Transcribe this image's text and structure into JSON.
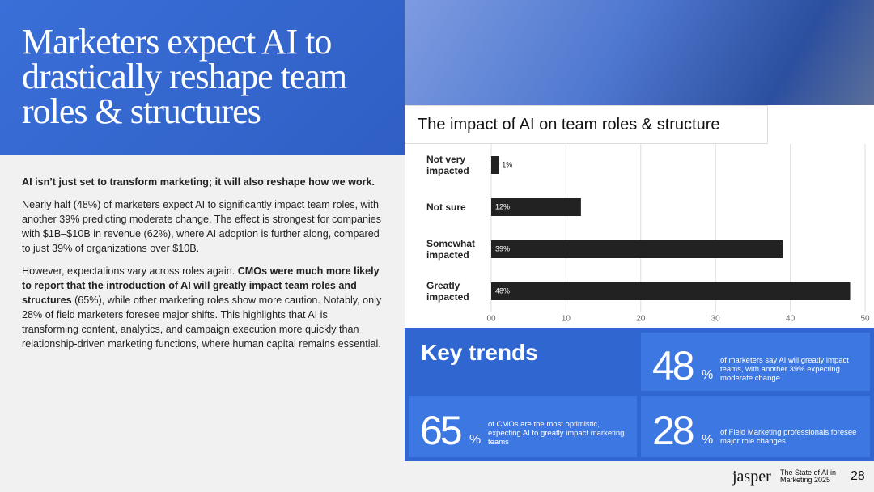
{
  "header": {
    "title": "Marketers expect AI to drastically reshape team roles & structures"
  },
  "body": {
    "lead": "AI isn’t just set to transform marketing; it will also reshape how we work.",
    "paragraphs": [
      [
        "Nearly half (48%) of marketers expect AI to significantly impact team roles, with another 39% predicting moderate change. The effect is strongest for companies with $1B–$10B in revenue (62%), where AI adoption is further along, compared to just 39% of organizations over $10B."
      ],
      [
        "However, expectations vary across roles again. ",
        "CMOs were much more likely to report that the introduction of AI will greatly impact team roles and structures",
        " (65%), while other marketing roles show more caution. Notably, only 28% of field marketers foresee major shifts. This highlights that AI is transforming content, analytics, and campaign execution more quickly than relationship-driven marketing functions, where human capital remains essential."
      ]
    ]
  },
  "chart_data": {
    "type": "bar",
    "orientation": "horizontal",
    "title": "The impact of AI on team roles & structure",
    "categories": [
      "Not very impacted",
      "Not sure",
      "Somewhat impacted",
      "Greatly impacted"
    ],
    "values": [
      1,
      12,
      39,
      48
    ],
    "value_labels": [
      "1%",
      "12%",
      "39%",
      "48%"
    ],
    "color": "#222222",
    "xlim": [
      0,
      50
    ],
    "xticks": [
      {
        "value": 0,
        "label": "00"
      },
      10,
      20,
      30,
      40,
      50
    ],
    "grid": true
  },
  "key_trends": {
    "title": "Key trends",
    "stats": [
      {
        "number": "48",
        "unit": "%",
        "text": "of marketers say AI will greatly impact teams, with another 39% expecting moderate change"
      },
      {
        "number": "65",
        "unit": "%",
        "text": "of CMOs are the most optimistic, expecting AI to greatly impact marketing teams"
      },
      {
        "number": "28",
        "unit": "%",
        "text": "of Field Marketing professionals foresee major role changes"
      }
    ]
  },
  "footer": {
    "brand": "jasper",
    "report": "The State of AI in Marketing 2025",
    "page": "28"
  }
}
